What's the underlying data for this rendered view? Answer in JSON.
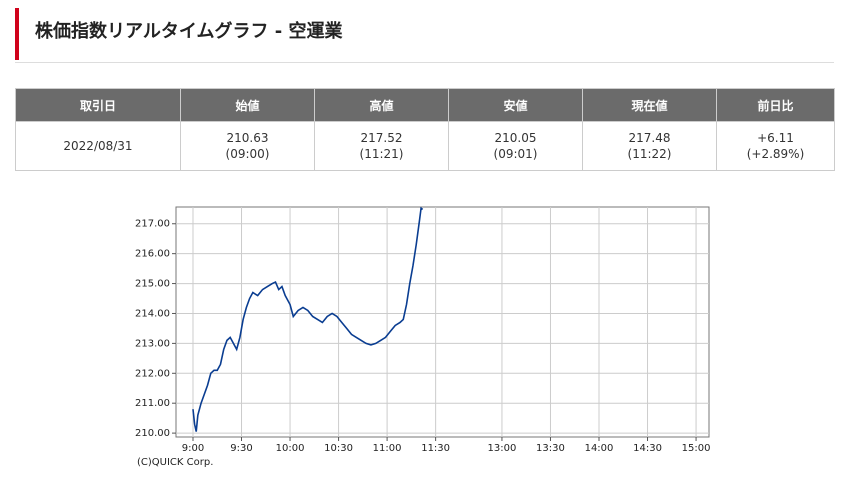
{
  "header": {
    "title": "株価指数リアルタイムグラフ - 空運業"
  },
  "table": {
    "headers": [
      "取引日",
      "始値",
      "高値",
      "安値",
      "現在値",
      "前日比"
    ],
    "row": [
      [
        "2022/08/31"
      ],
      [
        "210.63",
        "(09:00)"
      ],
      [
        "217.52",
        "(11:21)"
      ],
      [
        "210.05",
        "(09:01)"
      ],
      [
        "217.48",
        "(11:22)"
      ],
      [
        "+6.11",
        "(+2.89%)"
      ]
    ]
  },
  "chart_data": {
    "type": "line",
    "color": "#0a3d91",
    "grid": true,
    "copyright": "(C)QUICK Corp.",
    "x": [
      0,
      1,
      2,
      3,
      5,
      7,
      9,
      11,
      13,
      15,
      17,
      19,
      21,
      23,
      25,
      27,
      29,
      31,
      33,
      35,
      37,
      40,
      43,
      46,
      49,
      51,
      53,
      55,
      57,
      60,
      62,
      65,
      68,
      71,
      74,
      77,
      80,
      83,
      86,
      89,
      92,
      95,
      98,
      101,
      104,
      107,
      110,
      113,
      116,
      119,
      122,
      125,
      128,
      130,
      132,
      134,
      136,
      138,
      140,
      141,
      142
    ],
    "values": [
      210.8,
      210.3,
      210.05,
      210.6,
      211.0,
      211.3,
      211.6,
      212.0,
      212.1,
      212.1,
      212.3,
      212.8,
      213.1,
      213.2,
      213.0,
      212.8,
      213.2,
      213.8,
      214.2,
      214.5,
      214.7,
      214.6,
      214.8,
      214.9,
      215.0,
      215.05,
      214.8,
      214.9,
      214.6,
      214.3,
      213.9,
      214.1,
      214.2,
      214.1,
      213.9,
      213.8,
      213.7,
      213.9,
      214.0,
      213.9,
      213.7,
      213.5,
      213.3,
      213.2,
      213.1,
      213.0,
      212.95,
      213.0,
      213.1,
      213.2,
      213.4,
      213.6,
      213.7,
      213.8,
      214.3,
      215.0,
      215.6,
      216.3,
      217.1,
      217.52,
      217.48
    ],
    "xlim": [
      -10.5,
      319
    ],
    "ylim": [
      209.87,
      217.56
    ],
    "xticks": [
      {
        "value": 0,
        "label": "9:00"
      },
      {
        "value": 30,
        "label": "9:30"
      },
      {
        "value": 60,
        "label": "10:00"
      },
      {
        "value": 90,
        "label": "10:30"
      },
      {
        "value": 120,
        "label": "11:00"
      },
      {
        "value": 150,
        "label": "11:30"
      },
      {
        "value": 191,
        "label": "13:00"
      },
      {
        "value": 221,
        "label": "13:30"
      },
      {
        "value": 251,
        "label": "14:00"
      },
      {
        "value": 281,
        "label": "14:30"
      },
      {
        "value": 311,
        "label": "15:00"
      }
    ],
    "yticks": [
      {
        "value": 210,
        "label": "210.00"
      },
      {
        "value": 211,
        "label": "211.00"
      },
      {
        "value": 212,
        "label": "212.00"
      },
      {
        "value": 213,
        "label": "213.00"
      },
      {
        "value": 214,
        "label": "214.00"
      },
      {
        "value": 215,
        "label": "215.00"
      },
      {
        "value": 216,
        "label": "216.00"
      },
      {
        "value": 217,
        "label": "217.00"
      }
    ]
  }
}
